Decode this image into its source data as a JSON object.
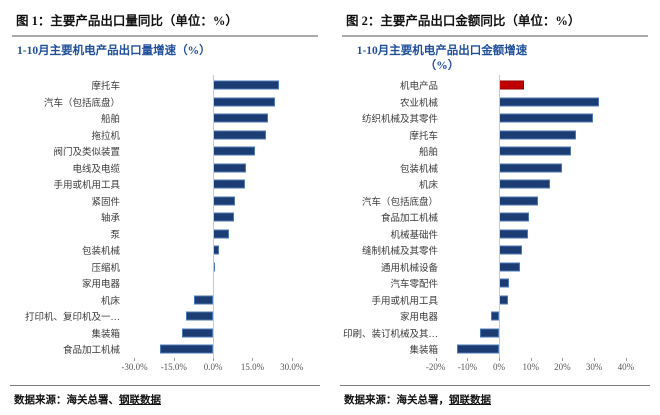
{
  "figures": [
    {
      "title": "图 1：主要产品出口量同比（单位：%）",
      "subtitle_line1": "1-10月主要机电产品出口量增速（%）",
      "subtitle_line2": "",
      "source_prefix": "数据来源：海关总署、",
      "source_link": "钢联数据"
    },
    {
      "title": "图 2：主要产品出口金额同比（单位：%）",
      "subtitle_line1": "1-10月主要机电产品出口金额增速",
      "subtitle_line2": "（%）",
      "source_prefix": "数据来源：海关总署，",
      "source_link": "钢联数据"
    }
  ],
  "chart_data": [
    {
      "type": "bar",
      "orientation": "horizontal",
      "title": "1-10月主要机电产品出口量增速（%）",
      "categories": [
        "摩托车",
        "汽车（包括底盘）",
        "船舶",
        "拖拉机",
        "阀门及类似装置",
        "电线及电缆",
        "手用或机用工具",
        "紧固件",
        "轴承",
        "泵",
        "包装机械",
        "压缩机",
        "家用电器",
        "机床",
        "打印机、复印机及一…",
        "集装箱",
        "食品加工机械"
      ],
      "values": [
        25.0,
        23.5,
        20.8,
        20.0,
        16.0,
        12.5,
        12.0,
        8.4,
        7.8,
        6.0,
        2.1,
        0.9,
        0.0,
        -7.2,
        -10.3,
        -11.8,
        -20.3
      ],
      "xlim": [
        -34,
        40
      ],
      "ticks": [
        {
          "value": -30,
          "label": "-30.0%"
        },
        {
          "value": -15,
          "label": "-15.0%"
        },
        {
          "value": 0,
          "label": "0.0%"
        },
        {
          "value": 15,
          "label": "15.0%"
        },
        {
          "value": 30,
          "label": "30.0%"
        }
      ],
      "bar_color": "#1c3c74",
      "highlight_index": -1,
      "highlight_color": "#c00000",
      "grid": false,
      "legend": false
    },
    {
      "type": "bar",
      "orientation": "horizontal",
      "title": "1-10月主要机电产品出口金额增速（%）",
      "categories": [
        "机电产品",
        "农业机械",
        "纺织机械及其零件",
        "摩托车",
        "船舶",
        "包装机械",
        "机床",
        "汽车（包括底盘）",
        "食品加工机械",
        "机械基础件",
        "缝制机械及其零件",
        "通用机械设备",
        "汽车零配件",
        "手用或机用工具",
        "家用电器",
        "印刷、装订机械及其…",
        "集装箱"
      ],
      "values": [
        7.9,
        31.4,
        29.7,
        24.3,
        22.6,
        20.0,
        16.1,
        12.3,
        9.4,
        9.2,
        7.2,
        6.5,
        3.0,
        2.8,
        -2.5,
        -5.9,
        -13.4
      ],
      "xlim": [
        -18,
        47
      ],
      "ticks": [
        {
          "value": -20,
          "label": "-20%"
        },
        {
          "value": -10,
          "label": "-10%"
        },
        {
          "value": 0,
          "label": "0%"
        },
        {
          "value": 10,
          "label": "10%"
        },
        {
          "value": 20,
          "label": "20%"
        },
        {
          "value": 30,
          "label": "30%"
        },
        {
          "value": 40,
          "label": "40%"
        }
      ],
      "bar_color": "#1c3c74",
      "highlight_index": 0,
      "highlight_color": "#c00000",
      "grid": false,
      "legend": false
    }
  ]
}
